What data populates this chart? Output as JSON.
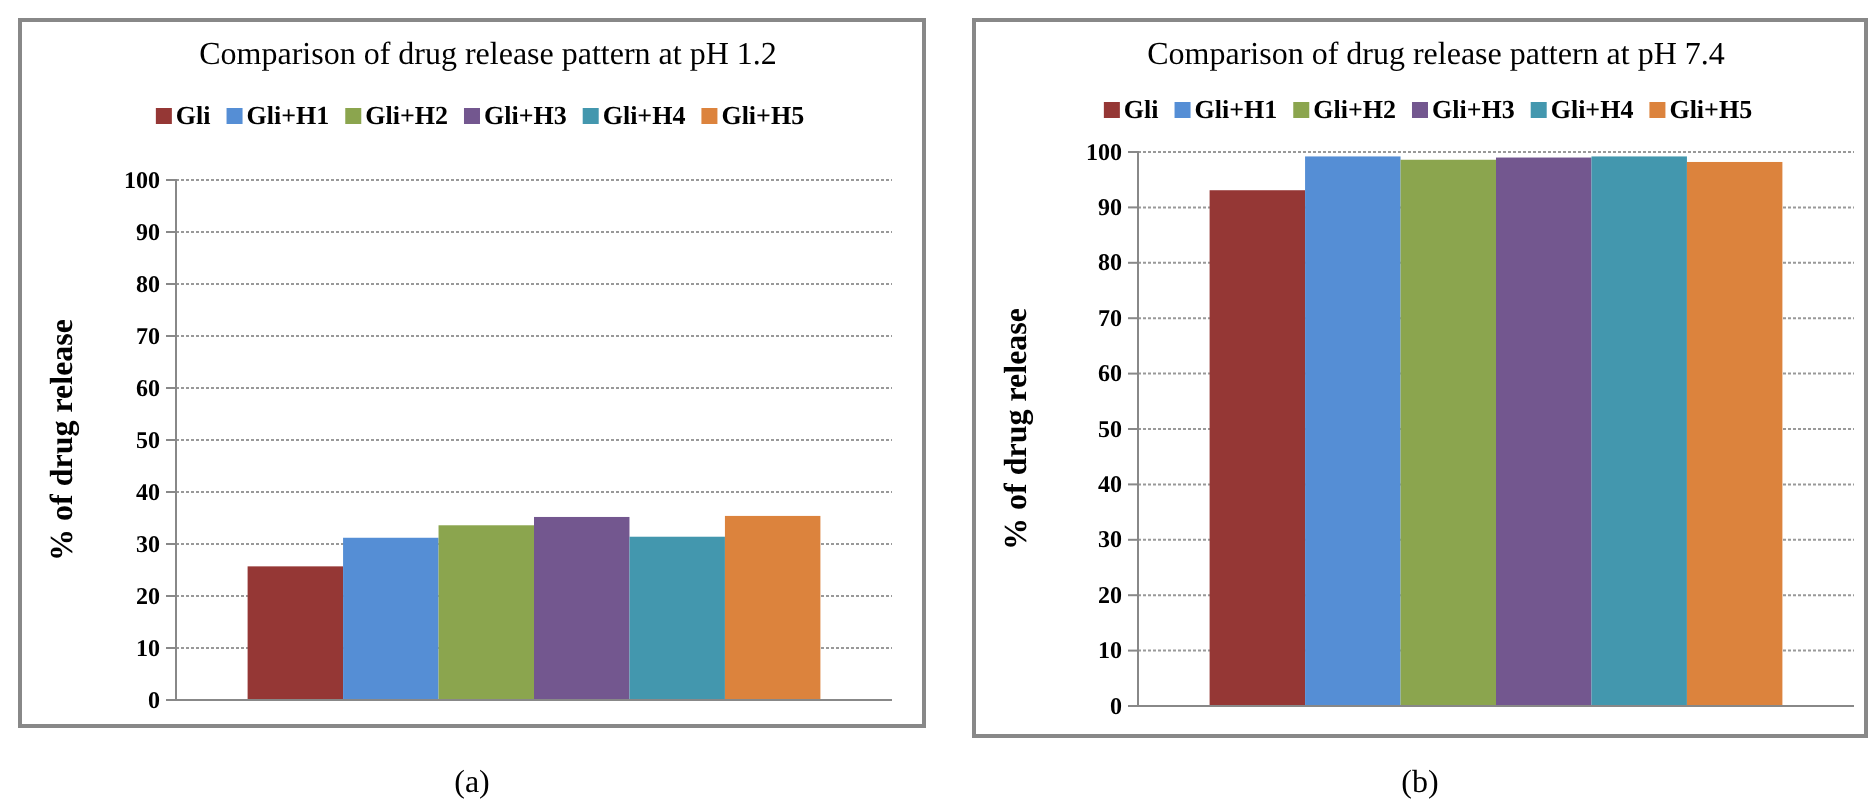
{
  "chart_data": [
    {
      "type": "bar",
      "title": "Comparison of drug release pattern at pH 1.2",
      "ylabel": "% of drug release",
      "categories": [
        null
      ],
      "series": [
        {
          "name": "Gli",
          "color": "#953735",
          "values": [
            25.7
          ]
        },
        {
          "name": "Gli+H1",
          "color": "#558ed5",
          "values": [
            31.2
          ]
        },
        {
          "name": "Gli+H2",
          "color": "#8ba54e",
          "values": [
            33.6
          ]
        },
        {
          "name": "Gli+H3",
          "color": "#73578f",
          "values": [
            35.2
          ]
        },
        {
          "name": "Gli+H4",
          "color": "#4397ae",
          "values": [
            31.4
          ]
        },
        {
          "name": "Gli+H5",
          "color": "#dc833d",
          "values": [
            35.4
          ]
        }
      ],
      "ylim": [
        0,
        100
      ],
      "yticks": [
        0,
        10,
        20,
        30,
        40,
        50,
        60,
        70,
        80,
        90,
        100
      ],
      "grid": "y",
      "legend": "top",
      "annotations": [
        "(a)"
      ]
    },
    {
      "type": "bar",
      "title": "Comparison of drug release pattern at pH 7.4",
      "ylabel": "% of drug release",
      "categories": [
        null
      ],
      "series": [
        {
          "name": "Gli",
          "color": "#953735",
          "values": [
            93.1
          ]
        },
        {
          "name": "Gli+H1",
          "color": "#558ed5",
          "values": [
            99.2
          ]
        },
        {
          "name": "Gli+H2",
          "color": "#8ba54e",
          "values": [
            98.6
          ]
        },
        {
          "name": "Gli+H3",
          "color": "#73578f",
          "values": [
            99.0
          ]
        },
        {
          "name": "Gli+H4",
          "color": "#4397ae",
          "values": [
            99.2
          ]
        },
        {
          "name": "Gli+H5",
          "color": "#dc833d",
          "values": [
            98.2
          ]
        }
      ],
      "ylim": [
        0,
        100
      ],
      "yticks": [
        0,
        10,
        20,
        30,
        40,
        50,
        60,
        70,
        80,
        90,
        100
      ],
      "grid": "y",
      "legend": "top",
      "annotations": [
        "(b)"
      ]
    }
  ]
}
